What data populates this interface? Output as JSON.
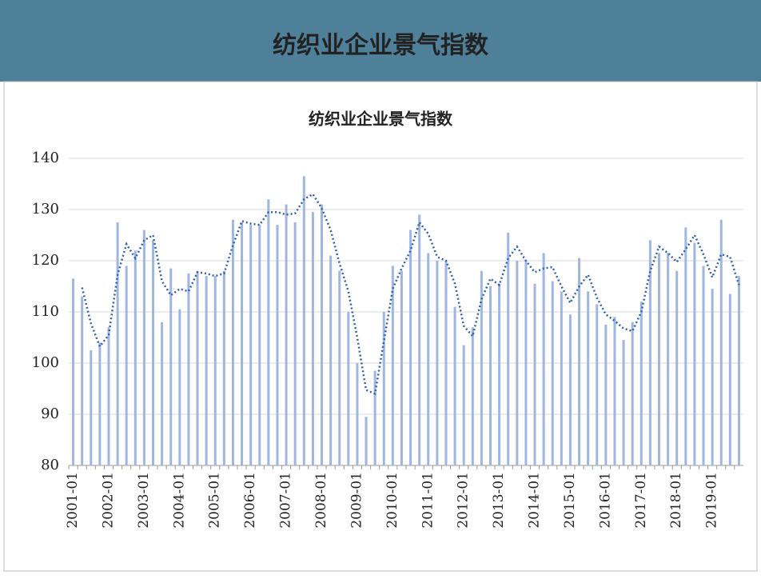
{
  "header": {
    "title": "纺织业企业景气指数"
  },
  "chart_data": {
    "type": "bar",
    "title": "纺织业企业景气指数",
    "categories": [
      "2001-01",
      null,
      null,
      null,
      "2002-01",
      null,
      null,
      null,
      "2003-01",
      null,
      null,
      null,
      "2004-01",
      null,
      null,
      null,
      "2005-01",
      null,
      null,
      null,
      "2006-01",
      null,
      null,
      null,
      "2007-01",
      null,
      null,
      null,
      "2008-01",
      null,
      null,
      null,
      "2009-01",
      null,
      null,
      null,
      "2010-01",
      null,
      null,
      null,
      "2011-01",
      null,
      null,
      null,
      "2012-01",
      null,
      null,
      null,
      "2013-01",
      null,
      null,
      null,
      "2014-01",
      null,
      null,
      null,
      "2015-01",
      null,
      null,
      null,
      "2016-01",
      null,
      null,
      null,
      "2017-01",
      null,
      null,
      null,
      "2018-01",
      null,
      null,
      null,
      "2019-01",
      null,
      null,
      null
    ],
    "values": [
      116.5,
      113,
      102.5,
      104,
      107,
      127.5,
      119,
      122,
      126,
      124,
      108,
      118.5,
      110.5,
      117.5,
      118,
      117,
      117,
      118,
      128,
      127.5,
      127,
      127,
      132,
      127,
      131,
      127.5,
      136.5,
      129.5,
      131,
      121,
      118,
      110,
      100,
      89.5,
      98.5,
      110,
      119,
      118,
      126,
      129,
      121.5,
      120,
      120,
      111,
      103.5,
      107,
      118,
      115,
      115.5,
      125.5,
      120,
      120,
      115.5,
      121.5,
      116,
      114,
      109.5,
      120.5,
      114,
      111.5,
      107.5,
      109,
      104.5,
      108,
      112,
      124,
      121.5,
      121.5,
      118,
      126.5,
      123.5,
      119,
      114.5,
      128,
      113.5,
      117
    ],
    "color": "#9fb6e2",
    "trend": {
      "color": "#2f5fb0",
      "values": [
        null,
        114.75,
        107.75,
        103.25,
        105.5,
        117.25,
        123.25,
        120.5,
        124,
        125,
        116,
        113.25,
        114.5,
        114,
        117.75,
        117.5,
        117,
        117.5,
        123,
        127.75,
        127.25,
        127,
        129.5,
        129.5,
        129,
        129.25,
        132,
        133,
        130.25,
        126,
        119.5,
        114,
        105,
        94.75,
        94,
        104.25,
        114.5,
        118.5,
        122,
        127.5,
        125.25,
        120.75,
        120,
        115.5,
        107.25,
        105.25,
        112.5,
        116.5,
        115.25,
        120.5,
        122.75,
        120,
        117.75,
        118.5,
        118.75,
        115,
        111.75,
        115,
        117.25,
        112.75,
        109.5,
        108.25,
        106.75,
        106.25,
        110,
        118,
        122.75,
        121.5,
        119.75,
        122.25,
        125,
        121.25,
        116.75,
        121.25,
        120.75,
        115.25
      ]
    },
    "ylim": [
      80,
      140
    ],
    "yticks": [
      80,
      90,
      100,
      110,
      120,
      130,
      140
    ],
    "grid": true
  }
}
